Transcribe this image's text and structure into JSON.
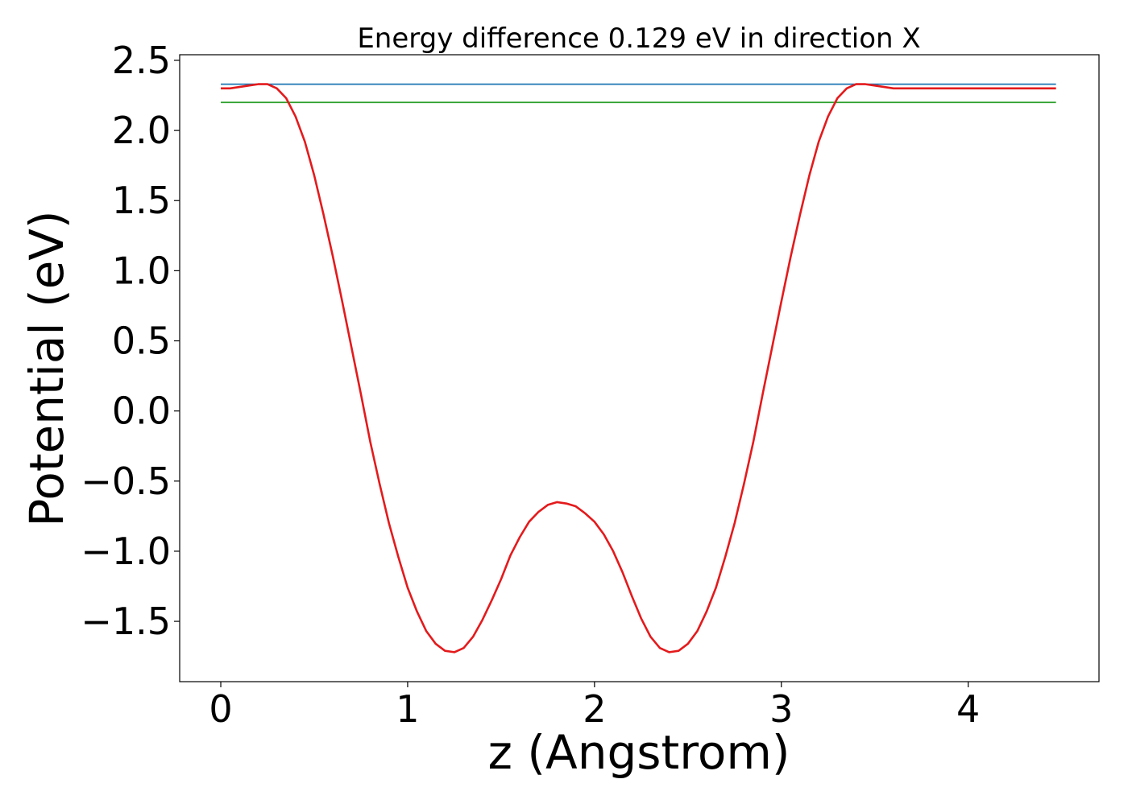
{
  "chart_data": {
    "type": "line",
    "title": "Energy difference 0.129 eV in direction X",
    "xlabel": "z (Angstrom)",
    "ylabel": "Potential (eV)",
    "xlim": [
      -0.22,
      4.7
    ],
    "ylim": [
      -1.93,
      2.54
    ],
    "grid": false,
    "x_ticks": [
      0,
      1,
      2,
      3,
      4
    ],
    "x_tick_labels": [
      "0",
      "1",
      "2",
      "3",
      "4"
    ],
    "y_ticks": [
      2.5,
      2.0,
      1.5,
      1.0,
      0.5,
      0.0,
      -0.5,
      -1.0,
      -1.5
    ],
    "y_tick_labels": [
      "2.5",
      "2.0",
      "1.5",
      "1.0",
      "0.5",
      "0.0",
      "−0.5",
      "−1.0",
      "−1.5"
    ],
    "series": [
      {
        "color": "#1f77b4",
        "x": [
          0,
          4.47
        ],
        "y": [
          2.33,
          2.33
        ]
      },
      {
        "color": "#2ca02c",
        "x": [
          0,
          4.47
        ],
        "y": [
          2.2,
          2.2
        ]
      },
      {
        "color": "#e41a1c",
        "x": [
          0,
          0.05,
          0.1,
          0.15,
          0.2,
          0.25,
          0.3,
          0.35,
          0.4,
          0.45,
          0.5,
          0.55,
          0.6,
          0.65,
          0.7,
          0.75,
          0.8,
          0.85,
          0.9,
          0.95,
          1.0,
          1.05,
          1.1,
          1.15,
          1.2,
          1.25,
          1.3,
          1.35,
          1.4,
          1.45,
          1.5,
          1.55,
          1.6,
          1.65,
          1.7,
          1.75,
          1.8,
          1.85,
          1.9,
          1.95,
          2.0,
          2.05,
          2.1,
          2.15,
          2.2,
          2.25,
          2.3,
          2.35,
          2.4,
          2.45,
          2.5,
          2.55,
          2.6,
          2.65,
          2.7,
          2.75,
          2.8,
          2.85,
          2.9,
          2.95,
          3.0,
          3.05,
          3.1,
          3.15,
          3.2,
          3.25,
          3.3,
          3.35,
          3.4,
          3.45,
          3.5,
          3.55,
          3.6,
          3.65,
          3.7,
          3.75,
          3.8,
          3.85,
          3.9,
          3.95,
          4.0,
          4.05,
          4.1,
          4.15,
          4.2,
          4.25,
          4.3,
          4.35,
          4.4,
          4.45,
          4.47
        ],
        "y": [
          2.3,
          2.3,
          2.31,
          2.32,
          2.33,
          2.33,
          2.3,
          2.23,
          2.1,
          1.92,
          1.68,
          1.4,
          1.1,
          0.78,
          0.45,
          0.12,
          -0.22,
          -0.52,
          -0.8,
          -1.04,
          -1.26,
          -1.43,
          -1.57,
          -1.66,
          -1.71,
          -1.72,
          -1.69,
          -1.61,
          -1.49,
          -1.35,
          -1.2,
          -1.03,
          -0.9,
          -0.79,
          -0.72,
          -0.67,
          -0.65,
          -0.66,
          -0.68,
          -0.73,
          -0.79,
          -0.88,
          -1.0,
          -1.15,
          -1.32,
          -1.48,
          -1.61,
          -1.69,
          -1.72,
          -1.71,
          -1.66,
          -1.57,
          -1.43,
          -1.26,
          -1.04,
          -0.8,
          -0.52,
          -0.22,
          0.12,
          0.45,
          0.78,
          1.1,
          1.4,
          1.68,
          1.92,
          2.1,
          2.23,
          2.3,
          2.33,
          2.33,
          2.32,
          2.31,
          2.3,
          2.3,
          2.3,
          2.3,
          2.3,
          2.3,
          2.3,
          2.3,
          2.3,
          2.3,
          2.3,
          2.3,
          2.3,
          2.3,
          2.3,
          2.3,
          2.3,
          2.3,
          2.3
        ]
      }
    ]
  }
}
